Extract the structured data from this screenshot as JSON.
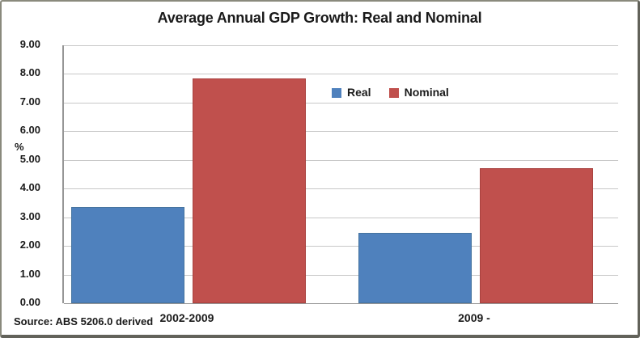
{
  "chart_data": {
    "type": "bar",
    "title": "Average Annual GDP Growth: Real and Nominal",
    "ylabel": "%",
    "categories": [
      "2002-2009",
      "2009 -"
    ],
    "series": [
      {
        "name": "Real",
        "color": "#4f81bd",
        "values": [
          3.35,
          2.45
        ]
      },
      {
        "name": "Nominal",
        "color": "#c0504d",
        "values": [
          7.85,
          4.7
        ]
      }
    ],
    "ylim": [
      0,
      9
    ],
    "ytick_step": 1,
    "ytick_format": "two-decimals",
    "grid": true,
    "legend_position": "top-center-inside",
    "source_note": "Source: ABS 5206.0 derived"
  }
}
